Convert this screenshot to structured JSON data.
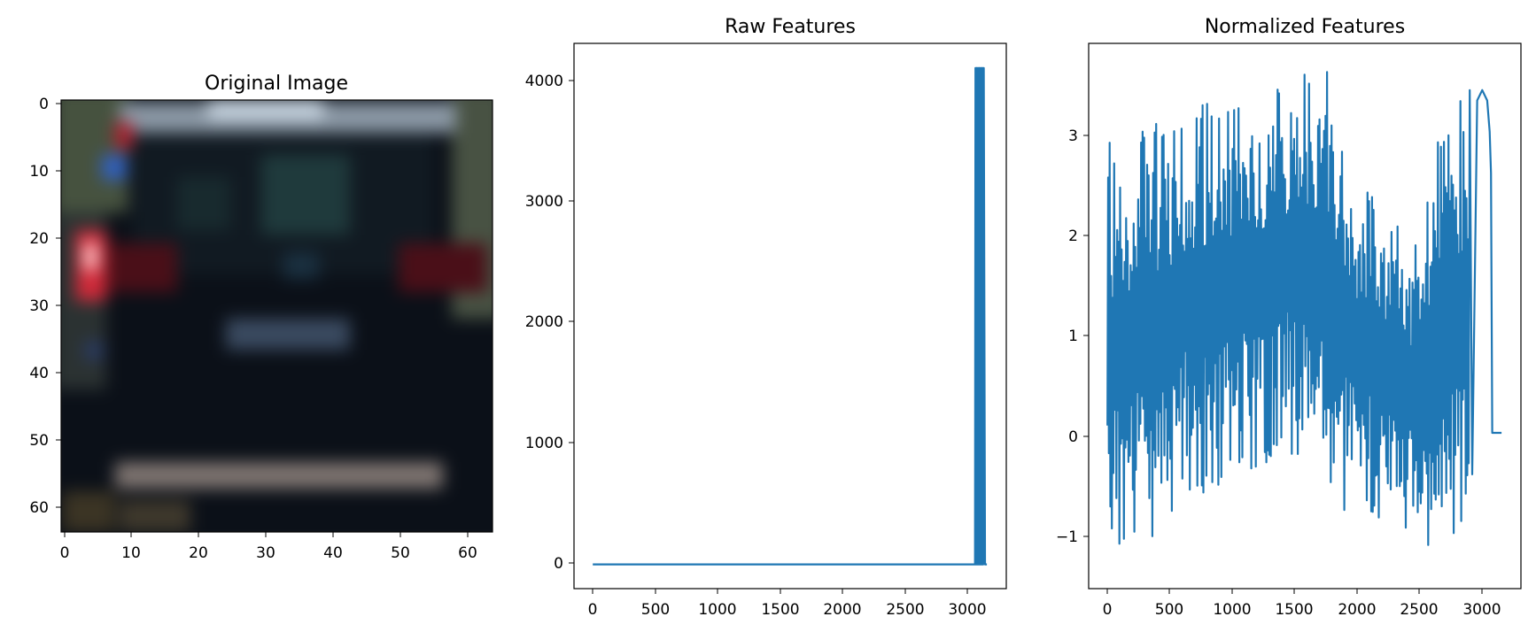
{
  "colors": {
    "line": "#1f77b4",
    "axes": "#000000",
    "background": "#ffffff"
  },
  "chart_data": [
    {
      "type": "image",
      "title": "Original Image",
      "xticks": [
        "0",
        "10",
        "20",
        "30",
        "40",
        "50",
        "60"
      ],
      "yticks": [
        "0",
        "10",
        "20",
        "30",
        "40",
        "50",
        "60"
      ],
      "xlim": [
        -0.5,
        63.5
      ],
      "ylim": [
        63.5,
        -0.5
      ],
      "content": "64x64 photo of the rear of a dark car"
    },
    {
      "type": "line",
      "title": "Raw Features",
      "xticks": [
        "0",
        "500",
        "1000",
        "1500",
        "2000",
        "2500",
        "3000"
      ],
      "yticks": [
        "0",
        "1000",
        "2000",
        "3000",
        "4000"
      ],
      "xlim": [
        -150,
        3310
      ],
      "ylim": [
        -200,
        4300
      ],
      "grid": false,
      "series": [
        {
          "x": [
            0,
            3060,
            3063,
            3066,
            3070,
            3073,
            3076,
            3080,
            3083,
            3086,
            3090,
            3093,
            3096,
            3100,
            3103,
            3106,
            3110,
            3113,
            3116,
            3120,
            3123,
            3126,
            3130,
            3140,
            3155
          ],
          "values": [
            0,
            0,
            4096,
            0,
            4096,
            0,
            4096,
            0,
            4096,
            0,
            4096,
            0,
            4096,
            0,
            4096,
            0,
            4096,
            0,
            4096,
            0,
            4096,
            0,
            4096,
            0,
            0
          ]
        }
      ]
    },
    {
      "type": "line",
      "title": "Normalized Features",
      "xticks": [
        "0",
        "500",
        "1000",
        "1500",
        "2000",
        "2500",
        "3000"
      ],
      "yticks": [
        "−1",
        "0",
        "1",
        "2",
        "3"
      ],
      "xlim": [
        -150,
        3310
      ],
      "ylim": [
        -1.5,
        3.75
      ],
      "grid": false,
      "series": [
        {
          "envelope_x": [
            0,
            100,
            200,
            300,
            400,
            500,
            600,
            700,
            800,
            900,
            1000,
            1100,
            1200,
            1300,
            1400,
            1500,
            1600,
            1700,
            1800,
            1900,
            2000,
            2100,
            2200,
            2300,
            2400,
            2500,
            2600,
            2700,
            2800,
            2900
          ],
          "envelope_high": [
            2.9,
            2.4,
            2.8,
            3.0,
            3.0,
            3.0,
            3.1,
            3.1,
            3.2,
            3.1,
            3.1,
            3.2,
            3.3,
            3.3,
            3.4,
            3.5,
            3.5,
            3.5,
            3.7,
            3.0,
            2.5,
            2.3,
            2.2,
            2.0,
            2.0,
            1.8,
            2.5,
            3.5,
            3.4,
            3.3
          ],
          "envelope_low": [
            -1.1,
            -1.1,
            -1.1,
            -1.1,
            -1.0,
            -0.9,
            -0.6,
            -0.6,
            -0.6,
            -0.5,
            -0.4,
            -0.3,
            -0.4,
            -0.3,
            -0.1,
            -0.3,
            -0.4,
            -0.6,
            -1.1,
            -0.8,
            -0.8,
            -0.8,
            -0.9,
            -0.9,
            -1.0,
            -1.1,
            -1.2,
            -1.2,
            -1.1,
            -1.0
          ],
          "tail_x": [
            2900,
            2920,
            2960,
            3000,
            3040,
            3060,
            3070,
            3080,
            3100,
            3155
          ],
          "tail_y": [
            3.3,
            -0.4,
            3.2,
            3.3,
            3.2,
            2.9,
            2.5,
            0.0,
            0.0,
            0.0
          ]
        }
      ]
    }
  ]
}
